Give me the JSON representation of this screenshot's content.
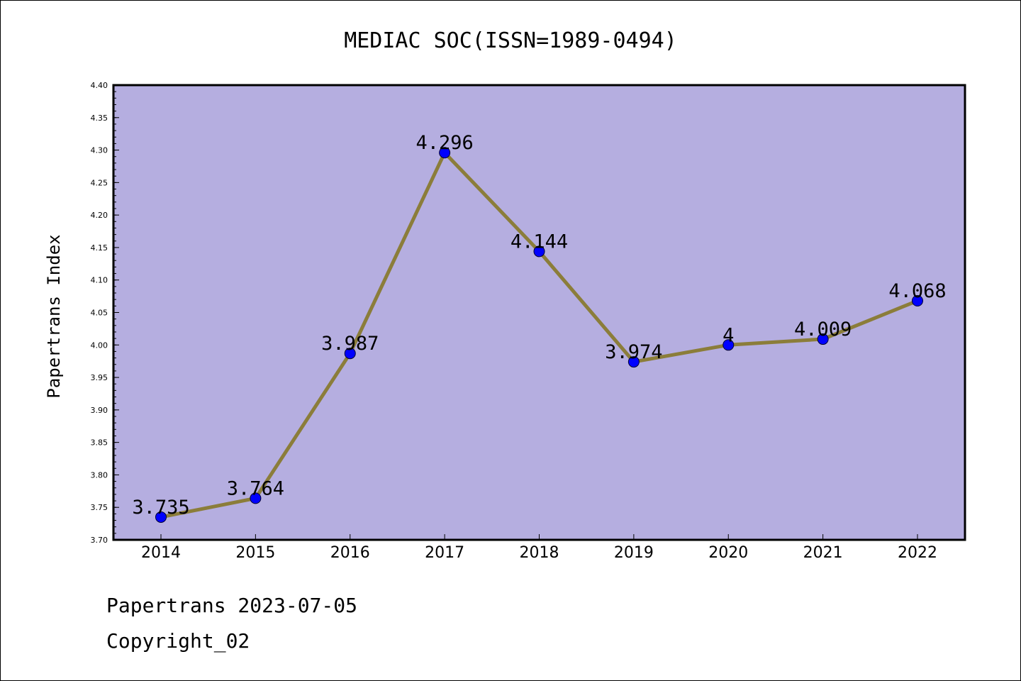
{
  "chart_data": {
    "type": "line",
    "title": "MEDIAC SOC(ISSN=1989-0494)",
    "xlabel": "",
    "ylabel": "Papertrans Index",
    "categories": [
      "2014",
      "2015",
      "2016",
      "2017",
      "2018",
      "2019",
      "2020",
      "2021",
      "2022"
    ],
    "values": [
      3.735,
      3.764,
      3.987,
      4.296,
      4.144,
      3.974,
      4,
      4.009,
      4.068
    ],
    "data_labels": [
      "3.735",
      "3.764",
      "3.987",
      "4.296",
      "4.144",
      "3.974",
      "4",
      "4.009",
      "4.068"
    ],
    "ylim": [
      3.7,
      4.4
    ],
    "yticks": [
      "3.70",
      "3.75",
      "3.80",
      "3.85",
      "3.90",
      "3.95",
      "4.00",
      "4.05",
      "4.10",
      "4.15",
      "4.20",
      "4.25",
      "4.30",
      "4.35",
      "4.40"
    ],
    "grid": false,
    "legend": "none",
    "colors": {
      "plot_background": "#b5aee0",
      "line": "#8b7d3a",
      "marker": "#0000ff"
    }
  },
  "footer": {
    "line1": "Papertrans 2023-07-05",
    "line2": "Copyright_02"
  }
}
